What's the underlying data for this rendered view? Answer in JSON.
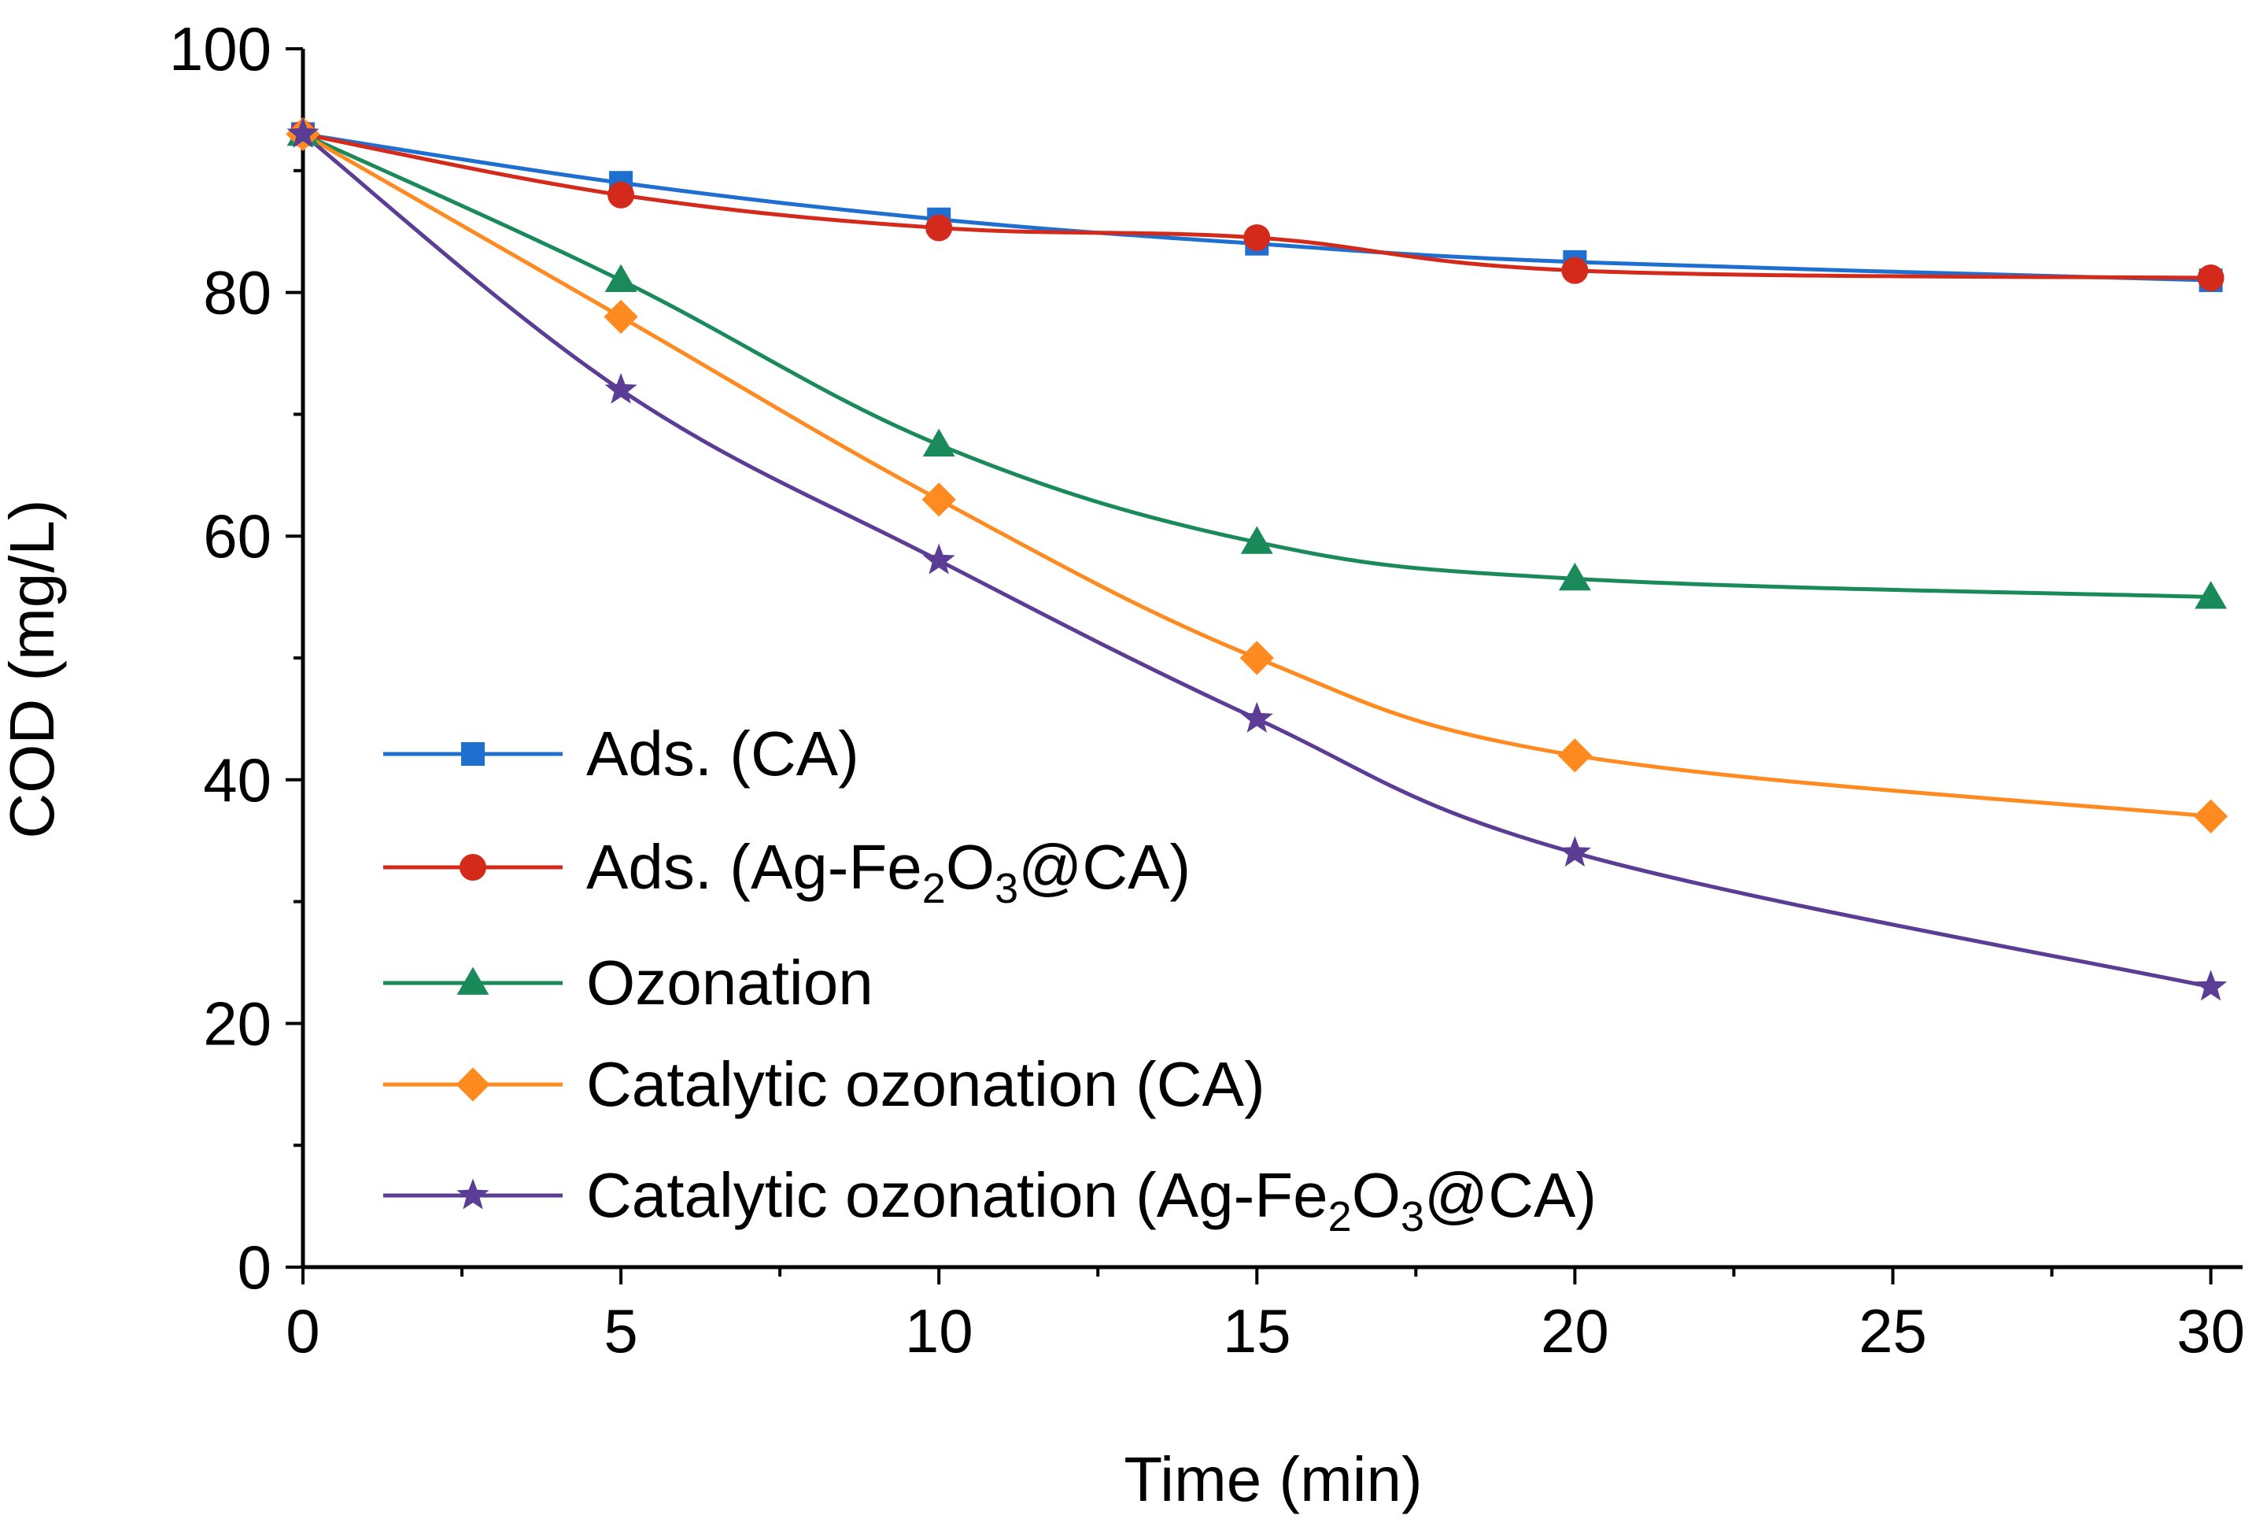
{
  "chart_data": {
    "type": "line",
    "title": "",
    "xlabel": "Time (min)",
    "ylabel": "COD (mg/L)",
    "xlim": [
      0,
      30.5
    ],
    "ylim": [
      0,
      100
    ],
    "xticks": [
      0,
      5,
      10,
      15,
      20,
      25,
      30
    ],
    "yticks": [
      0,
      20,
      40,
      60,
      80,
      100
    ],
    "legend_position": "bottom-left",
    "series": [
      {
        "name": "Ads. (CA)",
        "legend_parts": [
          "Ads. (CA)"
        ],
        "color": "#1f6fd1",
        "marker": "square",
        "x": [
          0,
          5,
          10,
          15,
          20,
          30
        ],
        "y": [
          93,
          89,
          86,
          84,
          82.5,
          81
        ]
      },
      {
        "name": "Ads. (Ag-Fe2O3@CA)",
        "legend_parts": [
          "Ads. (Ag-Fe",
          "2",
          "O",
          "3",
          "@CA)"
        ],
        "color": "#d42a1b",
        "marker": "circle",
        "x": [
          0,
          5,
          10,
          15,
          20,
          30
        ],
        "y": [
          93,
          88,
          85.3,
          84.5,
          81.8,
          81.2
        ]
      },
      {
        "name": "Ozonation",
        "legend_parts": [
          "Ozonation"
        ],
        "color": "#1a8a5a",
        "marker": "triangle",
        "x": [
          0,
          5,
          10,
          15,
          20,
          30
        ],
        "y": [
          93,
          81,
          67.5,
          59.5,
          56.5,
          55
        ]
      },
      {
        "name": "Catalytic ozonation (CA)",
        "legend_parts": [
          "Catalytic ozonation (CA)"
        ],
        "color": "#ff8a1f",
        "marker": "diamond",
        "x": [
          0,
          5,
          10,
          15,
          20,
          30
        ],
        "y": [
          93,
          78,
          63,
          50,
          42,
          37
        ]
      },
      {
        "name": "Catalytic ozonation (Ag-Fe2O3@CA)",
        "legend_parts": [
          "Catalytic ozonation (Ag-Fe",
          "2",
          "O",
          "3",
          "@CA)"
        ],
        "color": "#5b3d96",
        "marker": "star",
        "x": [
          0,
          5,
          10,
          15,
          20,
          30
        ],
        "y": [
          93,
          72,
          58,
          45,
          34,
          23
        ]
      }
    ]
  }
}
